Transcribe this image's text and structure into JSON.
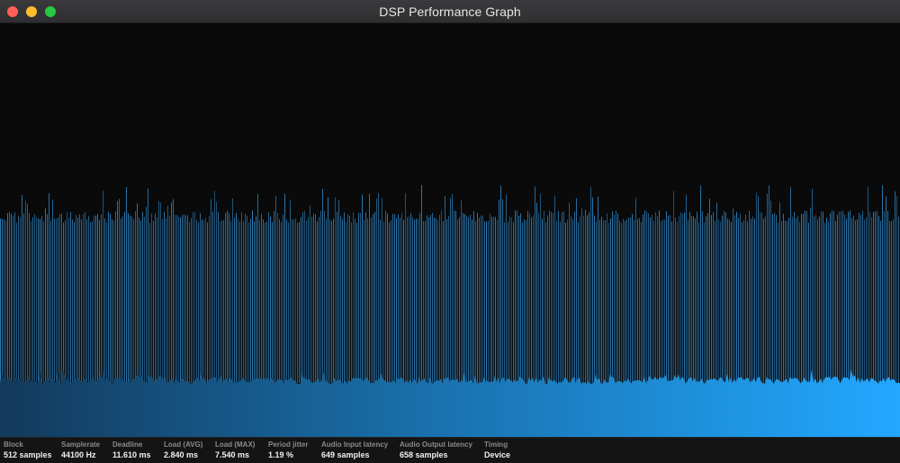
{
  "window": {
    "title": "DSP Performance Graph"
  },
  "colors": {
    "spike": "#2f87c8",
    "fill_left": "#123a5c",
    "fill_right": "#22a8ff",
    "background": "#0a0a0a"
  },
  "stats": [
    {
      "label": "Block",
      "value": "512 samples"
    },
    {
      "label": "Samplerate",
      "value": "44100 Hz"
    },
    {
      "label": "Deadline",
      "value": "11.610 ms"
    },
    {
      "label": "Load (AVG)",
      "value": "2.840 ms"
    },
    {
      "label": "Load (MAX)",
      "value": "7.540 ms"
    },
    {
      "label": "Period jitter",
      "value": "1.19 %"
    },
    {
      "label": "Audio Input latency",
      "value": "649 samples"
    },
    {
      "label": "Audio Output latency",
      "value": "658 samples"
    },
    {
      "label": "Timing",
      "value": "Device"
    }
  ]
}
